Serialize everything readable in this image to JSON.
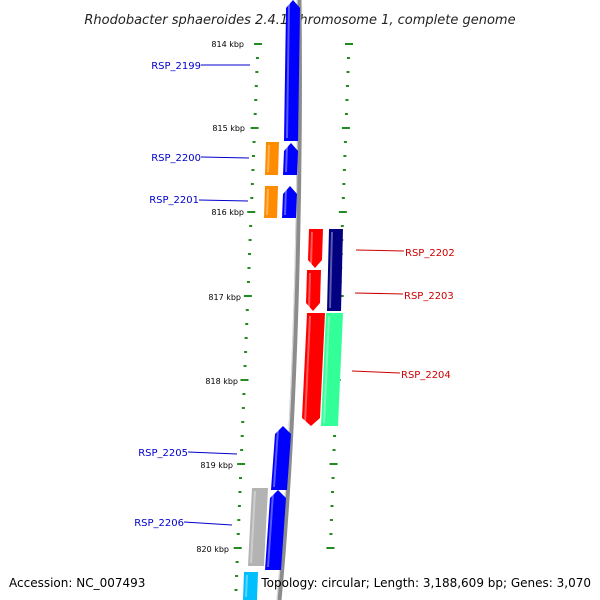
{
  "title": "Rhodobacter sphaeroides 2.4.1 chromosome 1, complete genome",
  "footer": {
    "accession": "Accession: NC_007493",
    "info": "Topology: circular; Length: 3,188,609 bp; Genes: 3,070"
  },
  "ticks": {
    "left": [
      "814 kbp",
      "815 kbp",
      "816 kbp",
      "817 kbp",
      "818 kbp",
      "819 kbp",
      "820 kbp"
    ]
  },
  "colors": {
    "blue_gene": "#0000ff",
    "orange_gene": "#ff8c00",
    "red_gene": "#ff0000",
    "navy_gene": "#000080",
    "seagreen_gene": "#33ff99",
    "grey_gene": "#b3b3b3",
    "cyan_gene": "#00bfff",
    "tick_green": "#228b22",
    "backbone": "#8c8c8c",
    "label_blue": "#0000cc",
    "label_red": "#cc0000"
  },
  "genes": [
    {
      "label": "RSP_2199",
      "strand": "forward",
      "color": "blue_gene",
      "labeled": true
    },
    {
      "label": "RSP_2200",
      "strand": "forward",
      "color": "blue_gene",
      "labeled": true
    },
    {
      "label": "",
      "strand": "forward",
      "color": "orange_gene",
      "labeled": false
    },
    {
      "label": "RSP_2201",
      "strand": "forward",
      "color": "blue_gene",
      "labeled": true
    },
    {
      "label": "",
      "strand": "forward",
      "color": "orange_gene",
      "labeled": false
    },
    {
      "label": "RSP_2202",
      "strand": "reverse",
      "color": "red_gene",
      "labeled": true
    },
    {
      "label": "RSP_2203",
      "strand": "reverse",
      "color": "red_gene",
      "labeled": true
    },
    {
      "label": "RSP_2204",
      "strand": "reverse",
      "color": "red_gene",
      "labeled": true
    },
    {
      "label": "",
      "strand": "reverse",
      "color": "navy_gene",
      "labeled": false
    },
    {
      "label": "",
      "strand": "reverse",
      "color": "seagreen_gene",
      "labeled": false
    },
    {
      "label": "RSP_2205",
      "strand": "forward",
      "color": "blue_gene",
      "labeled": true
    },
    {
      "label": "RSP_2206",
      "strand": "forward",
      "color": "blue_gene",
      "labeled": true
    },
    {
      "label": "",
      "strand": "forward",
      "color": "grey_gene",
      "labeled": false
    },
    {
      "label": "",
      "strand": "forward",
      "color": "cyan_gene",
      "labeled": false
    }
  ]
}
